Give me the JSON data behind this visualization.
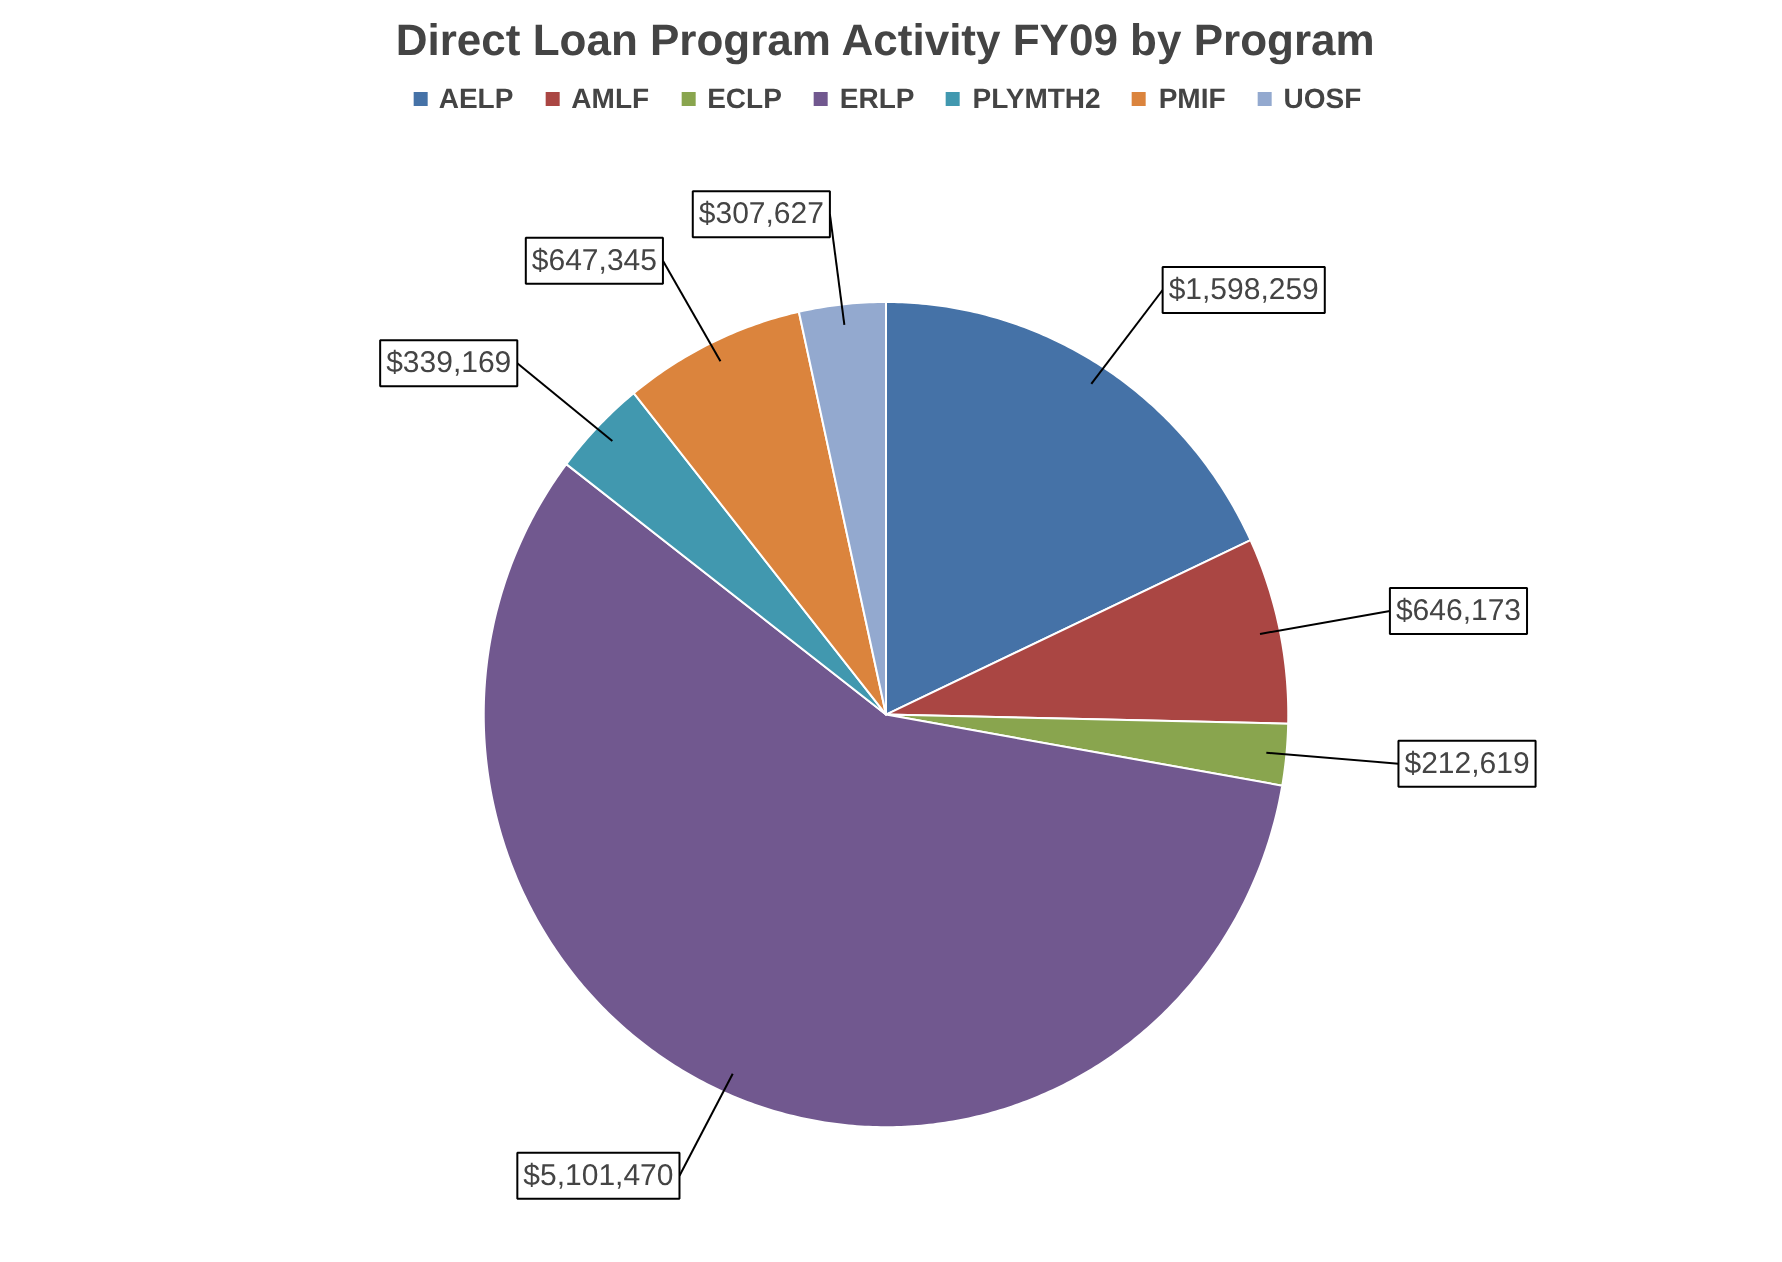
{
  "chart_data": {
    "type": "pie",
    "title": "Direct Loan Program Activity FY09 by Program",
    "categories": [
      "AELP",
      "AMLF",
      "ECLP",
      "ERLP",
      "PLYMTH2",
      "PMIF",
      "UOSF"
    ],
    "values": [
      1598259,
      646173,
      212619,
      5101470,
      339169,
      647345,
      307627
    ],
    "value_labels": [
      "$1,598,259",
      "$646,173",
      "$212,619",
      "$5,101,470",
      "$339,169",
      "$647,345",
      "$307,627"
    ],
    "colors": [
      "#4572a7",
      "#aa4643",
      "#89a54e",
      "#71588f",
      "#4198af",
      "#db843d",
      "#93a9cf"
    ],
    "legend": "top"
  }
}
